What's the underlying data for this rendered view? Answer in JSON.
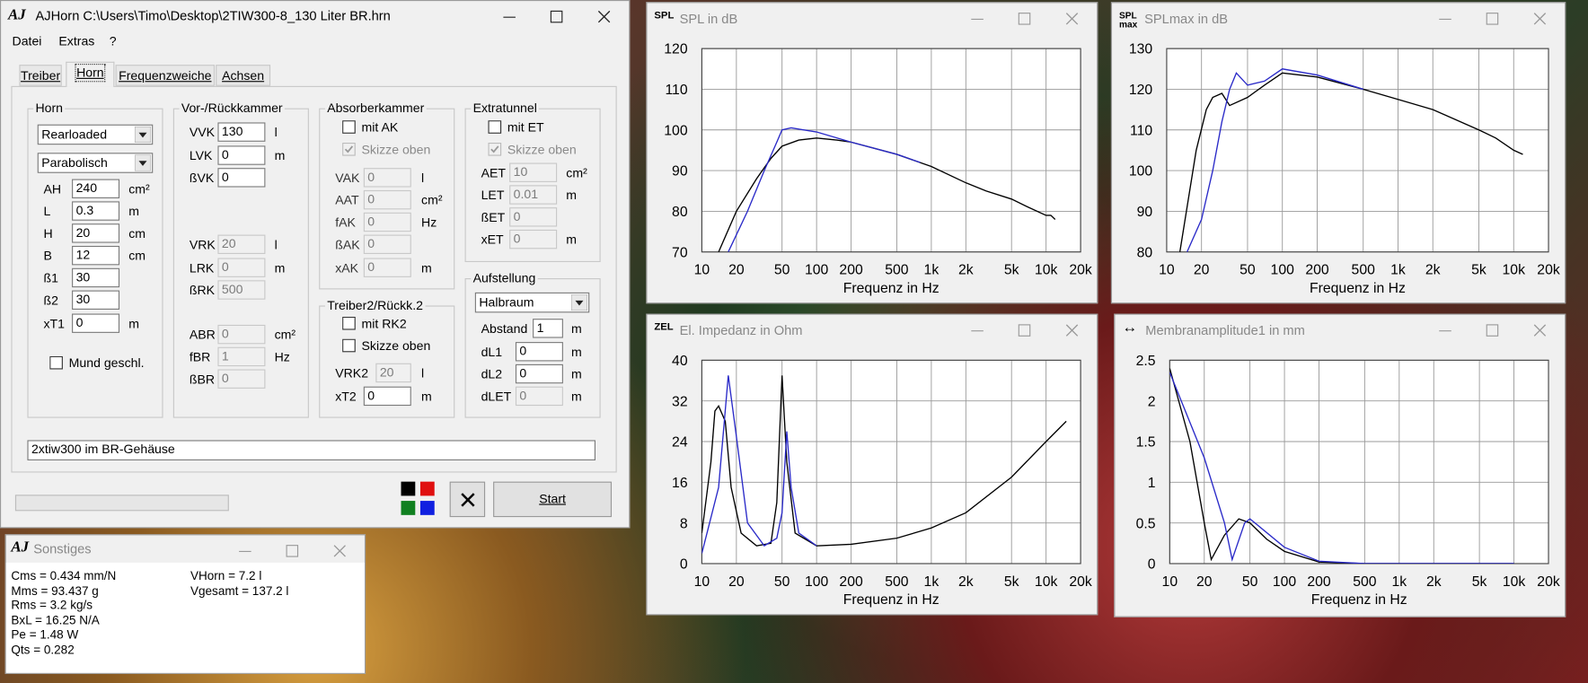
{
  "main_window": {
    "icon": "AJ",
    "title": "AJHorn  C:\\Users\\Timo\\Desktop\\2TIW300-8_130 Liter BR.hrn",
    "menu": [
      "Datei",
      "Extras",
      "?"
    ],
    "tabs": [
      "Treiber",
      "Horn",
      "Frequenzweiche",
      "Achsen"
    ],
    "groups": [
      {
        "title": "Horn",
        "selects": [
          "Rearloaded",
          "Parabolisch"
        ],
        "fields": [
          {
            "label": "AH",
            "value": "240",
            "unit": "cm²"
          },
          {
            "label": "L",
            "value": "0.3",
            "unit": "m"
          },
          {
            "label": "H",
            "value": "20",
            "unit": "cm"
          },
          {
            "label": "B",
            "value": "12",
            "unit": "cm"
          },
          {
            "label": "ß1",
            "value": "30"
          },
          {
            "label": "ß2",
            "value": "30"
          },
          {
            "label": "xT1",
            "value": "0",
            "unit": "m"
          }
        ],
        "checks": [
          {
            "label": "Mund geschl.",
            "checked": false
          }
        ]
      },
      {
        "title": "Vor-/Rückkammer",
        "fields": [
          {
            "label": "VVK",
            "value": "130",
            "unit": "l"
          },
          {
            "label": "LVK",
            "value": "0",
            "unit": "m"
          },
          {
            "label": "ßVK",
            "value": "0"
          },
          {
            "label": "VRK",
            "value": "20",
            "unit": "l",
            "disabled": true
          },
          {
            "label": "LRK",
            "value": "0",
            "unit": "m",
            "disabled": true
          },
          {
            "label": "ßRK",
            "value": "500",
            "disabled": true
          },
          {
            "label": "ABR",
            "value": "0",
            "unit": "cm²",
            "disabled": true
          },
          {
            "label": "fBR",
            "value": "1",
            "unit": "Hz",
            "disabled": true
          },
          {
            "label": "ßBR",
            "value": "0",
            "disabled": true
          }
        ]
      },
      {
        "title": "Absorberkammer",
        "checks": [
          {
            "label": "mit AK",
            "checked": false
          },
          {
            "label": "Skizze oben",
            "checked": true,
            "disabled": true
          }
        ],
        "fields": [
          {
            "label": "VAK",
            "value": "0",
            "unit": "l",
            "disabled": true
          },
          {
            "label": "AAT",
            "value": "0",
            "unit": "cm²",
            "disabled": true
          },
          {
            "label": "fAK",
            "value": "0",
            "unit": "Hz",
            "disabled": true
          },
          {
            "label": "ßAK",
            "value": "0",
            "disabled": true
          },
          {
            "label": "xAK",
            "value": "0",
            "unit": "m",
            "disabled": true
          }
        ]
      },
      {
        "title": "Extratunnel",
        "checks": [
          {
            "label": "mit ET",
            "checked": false
          },
          {
            "label": "Skizze oben",
            "checked": true,
            "disabled": true
          }
        ],
        "fields": [
          {
            "label": "AET",
            "value": "10",
            "unit": "cm²",
            "disabled": true
          },
          {
            "label": "LET",
            "value": "0.01",
            "unit": "m",
            "disabled": true
          },
          {
            "label": "ßET",
            "value": "0",
            "disabled": true
          },
          {
            "label": "xET",
            "value": "0",
            "unit": "m",
            "disabled": true
          }
        ]
      },
      {
        "title": "Treiber2/Rückk.2",
        "checks": [
          {
            "label": "mit RK2",
            "checked": false
          },
          {
            "label": "Skizze oben",
            "checked": false
          }
        ],
        "fields": [
          {
            "label": "VRK2",
            "value": "20",
            "unit": "l",
            "disabled": true
          },
          {
            "label": "xT2",
            "value": "0",
            "unit": "m"
          }
        ]
      },
      {
        "title": "Aufstellung",
        "selects": [
          "Halbraum"
        ],
        "fields": [
          {
            "label": "Abstand",
            "value": "1",
            "unit": "m"
          },
          {
            "label": "dL1",
            "value": "0",
            "unit": "m"
          },
          {
            "label": "dL2",
            "value": "0",
            "unit": "m"
          },
          {
            "label": "dLET",
            "value": "0",
            "unit": "m",
            "disabled": true
          }
        ]
      }
    ],
    "description": "2xtiw300 im BR-Gehäuse",
    "start_button": "Start"
  },
  "sonstiges": {
    "icon": "AJ",
    "title": "Sonstiges",
    "lines_left": [
      "Cms = 0.434 mm/N",
      "Mms = 93.437 g",
      "Rms = 3.2 kg/s",
      "BxL = 16.25 N/A",
      "Pe = 1.48 W",
      "Qts = 0.282"
    ],
    "lines_right": [
      "VHorn = 7.2 l",
      "Vgesamt = 137.2 l"
    ]
  },
  "chart_data": [
    {
      "type": "line",
      "icon": "SPL",
      "title": "SPL in dB",
      "x_label": "Frequenz in Hz",
      "xscale": "log",
      "grid": true,
      "xlim": [
        10,
        20000
      ],
      "xticks": [
        10,
        20,
        50,
        100,
        200,
        500,
        {
          "value": 1000,
          "label": "1k"
        },
        {
          "value": 2000,
          "label": "2k"
        },
        {
          "value": 5000,
          "label": "5k"
        },
        {
          "value": 10000,
          "label": "10k"
        },
        {
          "value": 20000,
          "label": "20k"
        }
      ],
      "ylim": [
        70,
        120
      ],
      "yticks": [
        70,
        80,
        90,
        100,
        110,
        120
      ],
      "series": [
        {
          "color": "#000000",
          "x": [
            14,
            20,
            30,
            40,
            50,
            70,
            100,
            150,
            200,
            500,
            1000,
            2000,
            3000,
            5000,
            7000,
            10000,
            11000,
            12000
          ],
          "values": [
            70,
            80,
            88,
            93,
            96,
            97.5,
            98,
            97.5,
            97,
            94,
            91,
            87,
            85,
            83,
            81,
            79,
            79,
            78
          ]
        },
        {
          "color": "#2a2ac8",
          "x": [
            17,
            25,
            35,
            45,
            50,
            60,
            100,
            200,
            500,
            800
          ],
          "values": [
            70,
            80,
            90,
            97,
            100,
            100.5,
            99.5,
            97,
            94,
            92
          ]
        }
      ]
    },
    {
      "type": "line",
      "icon": "SPL max",
      "title": "SPLmax in dB",
      "x_label": "Frequenz in Hz",
      "xscale": "log",
      "grid": true,
      "xlim": [
        10,
        20000
      ],
      "xticks": [
        10,
        20,
        50,
        100,
        200,
        500,
        {
          "value": 1000,
          "label": "1k"
        },
        {
          "value": 2000,
          "label": "2k"
        },
        {
          "value": 5000,
          "label": "5k"
        },
        {
          "value": 10000,
          "label": "10k"
        },
        {
          "value": 20000,
          "label": "20k"
        }
      ],
      "ylim": [
        80,
        130
      ],
      "yticks": [
        80,
        90,
        100,
        110,
        120,
        130
      ],
      "series": [
        {
          "color": "#000000",
          "x": [
            13,
            18,
            22,
            25,
            30,
            35,
            50,
            70,
            100,
            200,
            500,
            1000,
            2000,
            5000,
            7000,
            10000,
            12000
          ],
          "values": [
            80,
            105,
            115,
            118,
            119,
            116,
            118,
            121,
            124,
            123,
            120,
            117.5,
            115,
            110,
            108,
            105,
            104
          ]
        },
        {
          "color": "#2a2ac8",
          "x": [
            15,
            20,
            25,
            30,
            35,
            40,
            50,
            70,
            100,
            200,
            500
          ],
          "values": [
            80,
            88,
            100,
            112,
            120,
            124,
            121,
            122,
            125,
            123.5,
            120
          ]
        }
      ]
    },
    {
      "type": "line",
      "icon": "ZEL",
      "title": "El. Impedanz in Ohm",
      "x_label": "Frequenz in Hz",
      "xscale": "log",
      "grid": true,
      "xlim": [
        10,
        20000
      ],
      "xticks": [
        10,
        20,
        50,
        100,
        200,
        500,
        {
          "value": 1000,
          "label": "1k"
        },
        {
          "value": 2000,
          "label": "2k"
        },
        {
          "value": 5000,
          "label": "5k"
        },
        {
          "value": 10000,
          "label": "10k"
        },
        {
          "value": 20000,
          "label": "20k"
        }
      ],
      "ylim": [
        0,
        40
      ],
      "yticks": [
        0,
        8,
        16,
        24,
        32,
        40
      ],
      "series": [
        {
          "color": "#000000",
          "x": [
            10,
            12,
            13,
            14,
            16,
            18,
            22,
            30,
            40,
            45,
            50,
            55,
            65,
            100,
            200,
            500,
            1000,
            2000,
            5000,
            10000,
            15000
          ],
          "values": [
            6,
            20,
            30,
            31,
            28,
            15,
            6,
            3.5,
            4,
            12,
            37,
            20,
            6,
            3.5,
            3.8,
            5,
            7,
            10,
            17,
            24,
            28
          ]
        },
        {
          "color": "#2a2ac8",
          "x": [
            10,
            14,
            17,
            20,
            25,
            35,
            45,
            50,
            55,
            60,
            70,
            100
          ],
          "values": [
            2,
            15,
            37,
            25,
            8,
            3.5,
            5,
            10,
            26,
            15,
            6,
            3.5
          ]
        }
      ]
    },
    {
      "type": "line",
      "icon": "↔",
      "title": "Membranamplitude1 in mm",
      "x_label": "Frequenz in Hz",
      "xscale": "log",
      "grid": true,
      "xlim": [
        10,
        20000
      ],
      "xticks": [
        10,
        20,
        50,
        100,
        200,
        500,
        {
          "value": 1000,
          "label": "1k"
        },
        {
          "value": 2000,
          "label": "2k"
        },
        {
          "value": 5000,
          "label": "5k"
        },
        {
          "value": 10000,
          "label": "10k"
        },
        {
          "value": 20000,
          "label": "20k"
        }
      ],
      "ylim": [
        0,
        2.5
      ],
      "yticks": [
        0,
        0.5,
        1,
        1.5,
        2,
        2.5
      ],
      "series": [
        {
          "color": "#000000",
          "x": [
            10,
            15,
            20,
            23,
            30,
            40,
            50,
            70,
            100,
            200,
            500,
            1000,
            10000
          ],
          "values": [
            2.4,
            1.5,
            0.5,
            0.05,
            0.35,
            0.55,
            0.5,
            0.3,
            0.15,
            0.02,
            0,
            0,
            0
          ]
        },
        {
          "color": "#2a2ac8",
          "x": [
            10,
            20,
            30,
            35,
            45,
            50,
            100,
            200,
            500,
            10000
          ],
          "values": [
            2.35,
            1.3,
            0.5,
            0.05,
            0.5,
            0.55,
            0.2,
            0.03,
            0,
            0
          ]
        }
      ]
    }
  ]
}
